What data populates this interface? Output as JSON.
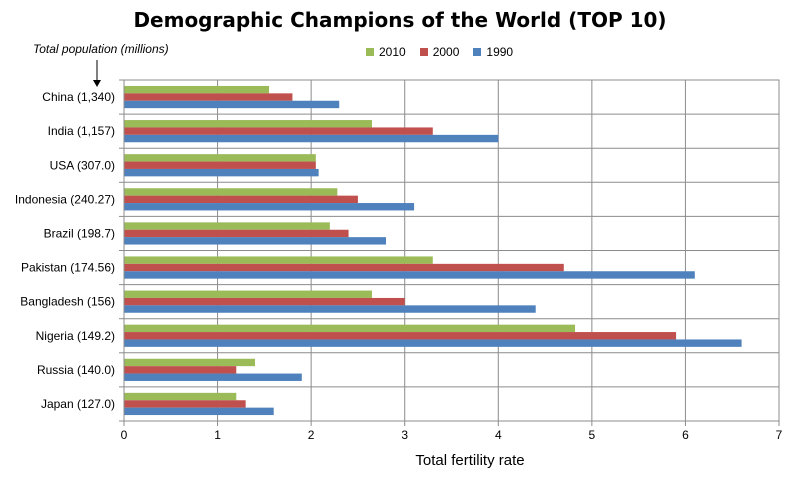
{
  "chart_data": {
    "type": "bar",
    "orientation": "horizontal",
    "title": "Demographic Champions of the World (TOP 10)",
    "annotation": "Total population (millions)",
    "xlabel": "Total fertility rate",
    "xlim": [
      0,
      7
    ],
    "xticks": [
      "0",
      "1",
      "2",
      "3",
      "4",
      "5",
      "6",
      "7"
    ],
    "grid": true,
    "legend_position": "top",
    "categories": [
      "China (1,340)",
      "India (1,157)",
      "USA (307.0)",
      "Indonesia (240.27)",
      "Brazil (198.7)",
      "Pakistan (174.56)",
      "Bangladesh (156)",
      "Nigeria (149.2)",
      "Russia (140.0)",
      "Japan (127.0)"
    ],
    "series": [
      {
        "name": "2010",
        "color": "#9bbb59",
        "values": [
          1.55,
          2.65,
          2.05,
          2.28,
          2.2,
          3.3,
          2.65,
          4.82,
          1.4,
          1.2
        ]
      },
      {
        "name": "2000",
        "color": "#c0504d",
        "values": [
          1.8,
          3.3,
          2.05,
          2.5,
          2.4,
          4.7,
          3.0,
          5.9,
          1.2,
          1.3
        ]
      },
      {
        "name": "1990",
        "color": "#4f81bd",
        "values": [
          2.3,
          4.0,
          2.08,
          3.1,
          2.8,
          6.1,
          4.4,
          6.6,
          1.9,
          1.6
        ]
      }
    ]
  }
}
